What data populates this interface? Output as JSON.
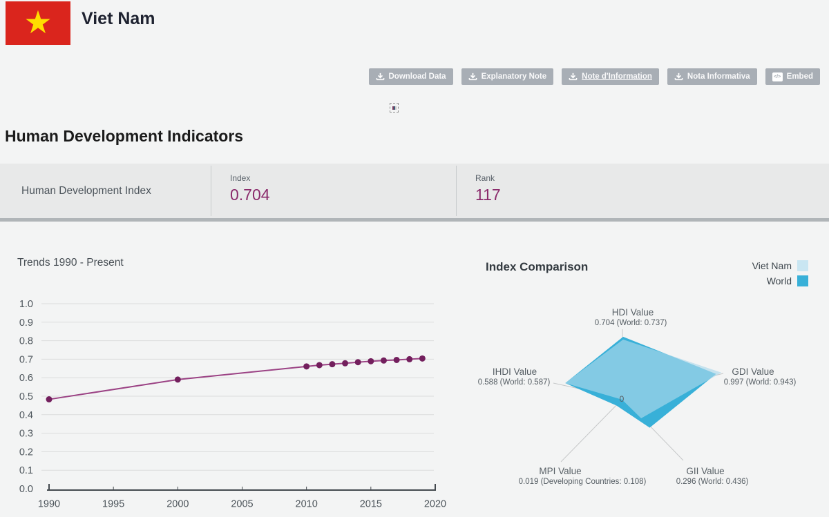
{
  "header": {
    "country_name": "Viet Nam",
    "flag_bg": "#da251d",
    "flag_star_color": "#ffde00"
  },
  "toolbar": {
    "buttons": [
      {
        "label": "Download Data",
        "icon": "download-icon"
      },
      {
        "label": "Explanatory Note",
        "icon": "download-icon"
      },
      {
        "label": "Note d'Information",
        "icon": "download-icon",
        "underlined": true
      },
      {
        "label": "Nota Informativa",
        "icon": "download-icon"
      },
      {
        "label": "Embed",
        "icon": "embed-icon"
      }
    ]
  },
  "page": {
    "title": "Human Development Indicators"
  },
  "summary": {
    "row_label": "Human Development Index",
    "index_label": "Index",
    "index_value": "0.704",
    "rank_label": "Rank",
    "rank_value": "117",
    "accent_color": "#8a2a6b"
  },
  "chart_data": [
    {
      "type": "line",
      "title": "Trends 1990 - Present",
      "x": [
        1990,
        2000,
        2010,
        2011,
        2012,
        2013,
        2014,
        2015,
        2016,
        2017,
        2018,
        2019
      ],
      "values": [
        0.483,
        0.59,
        0.661,
        0.668,
        0.673,
        0.678,
        0.684,
        0.689,
        0.693,
        0.696,
        0.7,
        0.704
      ],
      "xticks": [
        1990,
        1995,
        2000,
        2005,
        2010,
        2015,
        2020
      ],
      "yticks": [
        1.0,
        0.9,
        0.8,
        0.7,
        0.6,
        0.5,
        0.4,
        0.3,
        0.2,
        0.1,
        0.0
      ],
      "xlim": [
        1990,
        2020
      ],
      "ylim": [
        0,
        1
      ],
      "grid": true,
      "line_color": "#9b4284",
      "dot_color": "#731f5d",
      "grid_color": "#dbdcdc",
      "axis_color": "#43494e",
      "tick_label_color": "#4d555b"
    },
    {
      "type": "radar",
      "title": "Index Comparison",
      "legend": [
        {
          "name": "Viet Nam",
          "color": "#c9e6f2"
        },
        {
          "name": "World",
          "color": "#38b0d8"
        }
      ],
      "center_label": "0",
      "axes": [
        {
          "label": "HDI Value",
          "value_text": "0.704 (World: 0.737)",
          "country": 0.704,
          "comparison": 0.737
        },
        {
          "label": "GDI Value",
          "value_text": "0.997 (World: 0.943)",
          "country": 0.997,
          "comparison": 0.943
        },
        {
          "label": "GII Value",
          "value_text": "0.296 (World: 0.436)",
          "country": 0.296,
          "comparison": 0.436
        },
        {
          "label": "MPI Value",
          "value_text": "0.019 (Developing Countries: 0.108)",
          "country": 0.019,
          "comparison": 0.108
        },
        {
          "label": "IHDI Value",
          "value_text": "0.588 (World: 0.587)",
          "country": 0.588,
          "comparison": 0.587
        }
      ],
      "country_fill": "rgba(172,217,235,0.65)",
      "comparison_fill": "#38b0d8",
      "guide_color": "#c6c8c9",
      "label_color": "#565e64"
    }
  ]
}
